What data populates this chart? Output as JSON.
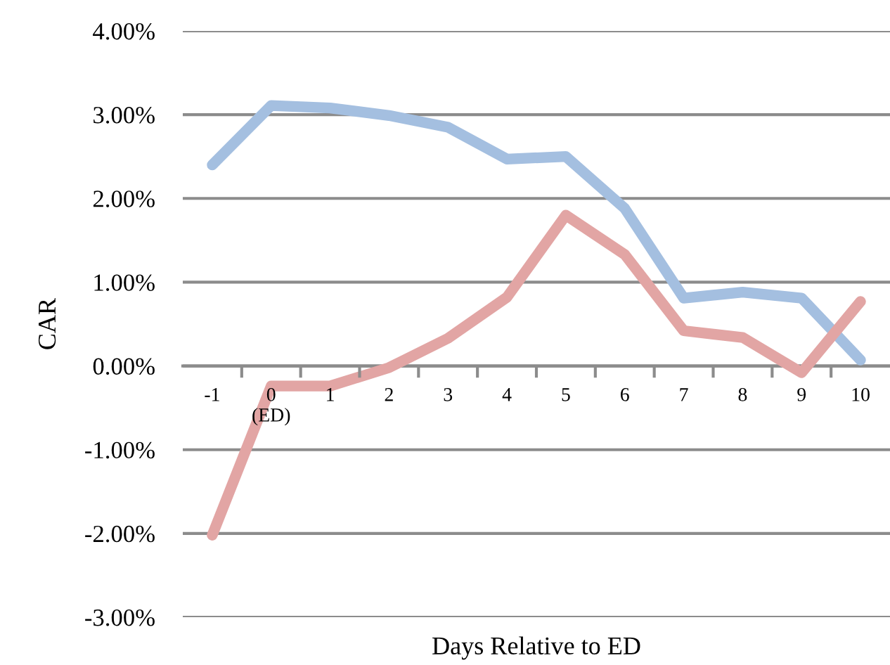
{
  "chart_data": {
    "type": "line",
    "xlabel": "Days Relative to ED",
    "ylabel": "CAR",
    "categories": [
      "-1",
      "0\n(ED)",
      "1",
      "2",
      "3",
      "4",
      "5",
      "6",
      "7",
      "8",
      "9",
      "10"
    ],
    "series": [
      {
        "color": "#a4bfe0",
        "values": [
          2.4,
          3.11,
          3.08,
          2.99,
          2.85,
          2.47,
          2.5,
          1.88,
          0.81,
          0.88,
          0.81,
          0.07
        ]
      },
      {
        "color": "#e2a5a4",
        "values": [
          -2.02,
          -0.24,
          -0.24,
          -0.02,
          0.33,
          0.82,
          1.8,
          1.33,
          0.42,
          0.34,
          -0.08,
          0.77
        ]
      }
    ],
    "ylim": [
      -3,
      4
    ],
    "yticks": [
      {
        "value": -3,
        "label": "-3.00%"
      },
      {
        "value": -2,
        "label": "-2.00%"
      },
      {
        "value": -1,
        "label": "-1.00%"
      },
      {
        "value": 0,
        "label": "0.00%"
      },
      {
        "value": 1,
        "label": "1.00%"
      },
      {
        "value": 2,
        "label": "2.00%"
      },
      {
        "value": 3,
        "label": "3.00%"
      },
      {
        "value": 4,
        "label": "4.00%"
      }
    ],
    "grid": "y",
    "marker": "none",
    "line_style": "solid"
  }
}
